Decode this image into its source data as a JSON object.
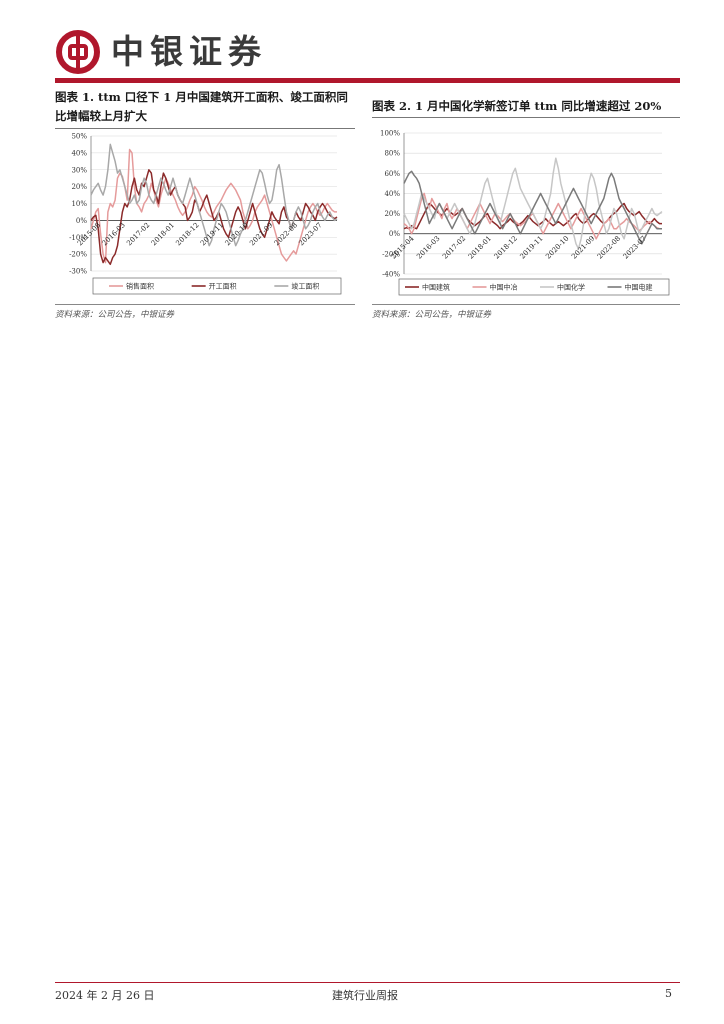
{
  "header": {
    "company_name": "中银证券",
    "brand_color": "#b0172c"
  },
  "figures": [
    {
      "title_line1": "图表 1. ttm 口径下 1 月中国建筑开工面积、竣工面积同",
      "title_line2": "比增幅较上月扩大",
      "source": "资料来源：公司公告，中银证券"
    },
    {
      "title_line1": "图表 2. 1 月中国化学新签订单 ttm 同比增速超过 20%",
      "source": "资料来源：公司公告，中银证券"
    }
  ],
  "chart_data": [
    {
      "type": "line",
      "title": "图表 1. ttm 口径下 1 月中国建筑开工面积、竣工面积同比增幅较上月扩大",
      "y_ticks": [
        "50%",
        "40%",
        "30%",
        "20%",
        "10%",
        "0%",
        "-10%",
        "-20%",
        "-30%"
      ],
      "ylim": [
        -30,
        50
      ],
      "x_ticks": [
        "2015-08",
        "2016-03",
        "2017-02",
        "2018-01",
        "2018-12",
        "2019-11",
        "2020-10",
        "2021-09",
        "2022-08",
        "2023-07"
      ],
      "x_range": [
        0,
        102
      ],
      "legend_position": "bottom",
      "series": [
        {
          "name": "销售面积",
          "color": "#e59b9b",
          "values": [
            -5,
            0,
            5,
            7,
            -8,
            -20,
            -25,
            5,
            10,
            8,
            12,
            25,
            28,
            26,
            20,
            12,
            42,
            40,
            20,
            10,
            8,
            5,
            10,
            12,
            15,
            22,
            18,
            12,
            8,
            15,
            20,
            25,
            22,
            18,
            15,
            12,
            8,
            5,
            3,
            5,
            8,
            12,
            15,
            20,
            18,
            15,
            12,
            8,
            5,
            3,
            2,
            5,
            8,
            10,
            12,
            15,
            18,
            20,
            22,
            20,
            18,
            15,
            12,
            5,
            0,
            -5,
            -3,
            0,
            5,
            8,
            10,
            12,
            15,
            10,
            5,
            0,
            -5,
            -10,
            -15,
            -20,
            -22,
            -24,
            -22,
            -20,
            -18,
            -20,
            -15,
            -10,
            -5,
            0,
            5,
            8,
            10,
            8,
            5,
            3,
            5,
            8,
            10,
            8,
            6,
            5,
            5
          ]
        },
        {
          "name": "开工面积",
          "color": "#8b2a2a",
          "values": [
            0,
            2,
            3,
            -5,
            -20,
            -25,
            -22,
            -24,
            -26,
            -22,
            -20,
            -15,
            -5,
            5,
            10,
            8,
            12,
            20,
            25,
            18,
            15,
            22,
            20,
            25,
            30,
            28,
            18,
            15,
            10,
            20,
            28,
            25,
            20,
            15,
            18,
            20,
            15,
            12,
            10,
            8,
            0,
            2,
            5,
            12,
            10,
            5,
            8,
            12,
            15,
            10,
            5,
            0,
            2,
            5,
            0,
            -5,
            -8,
            -10,
            -5,
            0,
            5,
            8,
            5,
            0,
            -5,
            0,
            5,
            10,
            5,
            0,
            -5,
            -8,
            -10,
            -5,
            0,
            5,
            2,
            0,
            -2,
            5,
            8,
            2,
            0,
            -5,
            0,
            5,
            2,
            0,
            5,
            10,
            8,
            5,
            3,
            0,
            5,
            8,
            10,
            8,
            5,
            3,
            2,
            1,
            2
          ]
        },
        {
          "name": "竣工面积",
          "color": "#a8a8a8",
          "values": [
            15,
            18,
            20,
            22,
            18,
            15,
            20,
            30,
            45,
            40,
            35,
            28,
            30,
            25,
            20,
            15,
            10,
            12,
            15,
            10,
            12,
            20,
            25,
            22,
            15,
            12,
            10,
            15,
            20,
            25,
            22,
            18,
            15,
            20,
            25,
            20,
            15,
            12,
            10,
            15,
            20,
            25,
            20,
            15,
            10,
            5,
            0,
            -5,
            -10,
            -15,
            -12,
            -5,
            0,
            5,
            10,
            8,
            5,
            0,
            -5,
            -10,
            -15,
            -12,
            -8,
            -5,
            0,
            5,
            10,
            15,
            20,
            25,
            30,
            28,
            22,
            15,
            10,
            12,
            20,
            30,
            33,
            25,
            15,
            5,
            0,
            -5,
            0,
            5,
            8,
            5,
            0,
            -5,
            -3,
            0,
            5,
            8,
            10,
            5,
            2,
            0,
            3,
            5,
            2,
            0,
            1
          ]
        }
      ]
    },
    {
      "type": "line",
      "title": "图表 2. 1 月中国化学新签订单 ttm 同比增速超过 20%",
      "y_ticks": [
        "100%",
        "80%",
        "60%",
        "40%",
        "20%",
        "0%",
        "-20%",
        "-40%"
      ],
      "ylim": [
        -40,
        100
      ],
      "x_ticks": [
        "2015-04",
        "2016-03",
        "2017-02",
        "2018-01",
        "2018-12",
        "2019-11",
        "2020-10",
        "2021-09",
        "2022-08",
        "2023-07"
      ],
      "x_range": [
        0,
        102
      ],
      "legend_position": "bottom",
      "series": [
        {
          "name": "中国建筑",
          "color": "#8b2a2a",
          "values": [
            5,
            6,
            5,
            8,
            6,
            5,
            10,
            15,
            20,
            25,
            30,
            28,
            25,
            22,
            20,
            18,
            22,
            25,
            22,
            20,
            18,
            20,
            22,
            25,
            20,
            15,
            12,
            10,
            8,
            10,
            12,
            15,
            18,
            20,
            15,
            12,
            10,
            8,
            5,
            8,
            10,
            12,
            15,
            12,
            10,
            8,
            10,
            12,
            15,
            18,
            15,
            12,
            10,
            8,
            10,
            12,
            15,
            12,
            10,
            8,
            10,
            12,
            10,
            8,
            10,
            12,
            15,
            18,
            20,
            15,
            12,
            10,
            12,
            15,
            18,
            20,
            18,
            15,
            12,
            10,
            12,
            15,
            18,
            20,
            22,
            25,
            28,
            30,
            25,
            22,
            20,
            18,
            20,
            22,
            18,
            15,
            12,
            10,
            12,
            15,
            12,
            10,
            10
          ]
        },
        {
          "name": "中国中冶",
          "color": "#e59b9b",
          "values": [
            10,
            8,
            5,
            0,
            5,
            15,
            25,
            35,
            40,
            30,
            25,
            35,
            30,
            25,
            20,
            15,
            25,
            30,
            20,
            15,
            20,
            25,
            20,
            15,
            10,
            5,
            10,
            15,
            20,
            25,
            30,
            25,
            20,
            15,
            10,
            15,
            20,
            18,
            15,
            12,
            15,
            18,
            20,
            15,
            12,
            10,
            8,
            10,
            12,
            15,
            18,
            20,
            15,
            10,
            5,
            0,
            5,
            10,
            15,
            20,
            25,
            30,
            25,
            20,
            15,
            10,
            5,
            10,
            15,
            20,
            25,
            20,
            15,
            10,
            5,
            0,
            -5,
            0,
            5,
            10,
            12,
            15,
            10,
            5,
            5,
            8,
            10,
            12,
            15,
            12,
            10,
            8,
            5,
            3,
            5,
            8,
            10,
            12,
            10,
            8,
            6,
            5,
            5
          ]
        },
        {
          "name": "中国化学",
          "color": "#c6c6c6",
          "values": [
            20,
            15,
            10,
            5,
            10,
            20,
            30,
            40,
            35,
            30,
            25,
            20,
            15,
            25,
            30,
            25,
            20,
            15,
            20,
            25,
            30,
            25,
            20,
            15,
            10,
            5,
            0,
            5,
            10,
            20,
            30,
            40,
            50,
            55,
            45,
            35,
            25,
            15,
            10,
            20,
            30,
            40,
            50,
            60,
            65,
            55,
            45,
            40,
            35,
            30,
            25,
            20,
            15,
            10,
            5,
            10,
            20,
            30,
            40,
            60,
            75,
            65,
            50,
            40,
            30,
            20,
            10,
            0,
            -10,
            -15,
            -5,
            10,
            30,
            50,
            60,
            55,
            45,
            30,
            20,
            10,
            0,
            5,
            15,
            25,
            20,
            10,
            0,
            -5,
            5,
            15,
            25,
            20,
            10,
            0,
            5,
            10,
            15,
            20,
            25,
            20,
            18,
            20,
            22
          ]
        },
        {
          "name": "中国电建",
          "color": "#7a7a7a",
          "values": [
            50,
            55,
            60,
            62,
            58,
            55,
            50,
            40,
            30,
            20,
            10,
            15,
            20,
            25,
            30,
            25,
            20,
            15,
            10,
            5,
            10,
            15,
            20,
            25,
            20,
            15,
            10,
            5,
            0,
            5,
            10,
            15,
            20,
            25,
            30,
            25,
            20,
            15,
            10,
            5,
            10,
            15,
            20,
            15,
            10,
            5,
            0,
            5,
            10,
            15,
            20,
            25,
            30,
            35,
            40,
            35,
            30,
            25,
            20,
            15,
            10,
            15,
            20,
            25,
            30,
            35,
            40,
            45,
            40,
            35,
            30,
            25,
            20,
            15,
            10,
            15,
            20,
            25,
            30,
            35,
            45,
            55,
            60,
            55,
            45,
            35,
            30,
            25,
            20,
            15,
            10,
            5,
            0,
            -5,
            -10,
            -5,
            0,
            5,
            10,
            8,
            5,
            5,
            5
          ]
        }
      ]
    }
  ],
  "footer": {
    "date": "2024 年 2 月 26 日",
    "report_name": "建筑行业周报",
    "page_number": "5",
    "rule_color": "#b0172c"
  }
}
